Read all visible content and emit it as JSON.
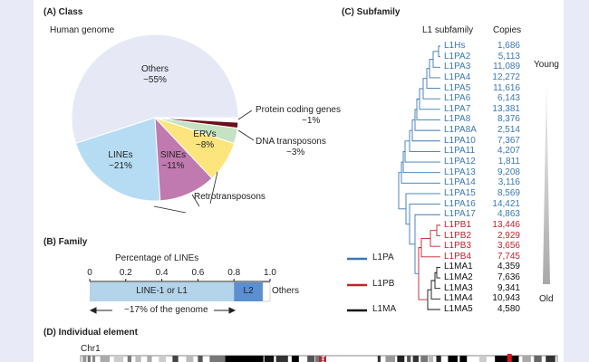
{
  "panel_a": {
    "title": "(A)  Class",
    "subtitle": "Human genome",
    "slices": [
      {
        "name": "Others",
        "label": "~55%",
        "value": 55,
        "color": "#e6e9f5"
      },
      {
        "name": "LINEs",
        "label": "~21%",
        "value": 21,
        "color": "#b6dcf4"
      },
      {
        "name": "SINEs",
        "label": "~11%",
        "value": 11,
        "color": "#c07ab0"
      },
      {
        "name": "ERVs",
        "label": "~8%",
        "value": 8,
        "color": "#fbe57c"
      },
      {
        "name": "DNA transposons",
        "label": "~3%",
        "value": 3,
        "color": "#c5e3c3"
      },
      {
        "name": "Protein coding genes",
        "label": "~1%",
        "value": 1,
        "color": "#6b0f1a"
      }
    ],
    "group_label": "Retrotransposons"
  },
  "panel_b": {
    "title": "(B)  Family",
    "axis_title": "Percentage of LINEs",
    "ticks": [
      "0",
      "0.2",
      "0.4",
      "0.6",
      "0.8",
      "1.0"
    ],
    "segments": [
      {
        "label": "LINE-1 or L1",
        "fraction": 0.8,
        "color": "#b3d4ea"
      },
      {
        "label": "L2",
        "fraction": 0.16,
        "color": "#5b8fd0"
      },
      {
        "label": "Others",
        "fraction": 0.04,
        "color": "#ffffff"
      }
    ],
    "note": "~17% of the genome"
  },
  "panel_c": {
    "title": "(C)  Subfamily",
    "col_subfamily": "L1 subfamily",
    "col_copies": "Copies",
    "young": "Young",
    "old": "Old",
    "legend": [
      {
        "label": "L1PA",
        "color": "#3a78b5"
      },
      {
        "label": "L1PB",
        "color": "#c0222c"
      },
      {
        "label": "L1MA",
        "color": "#111111"
      }
    ],
    "rows": [
      {
        "name": "L1Hs",
        "copies": "1,686",
        "group": 0
      },
      {
        "name": "L1PA2",
        "copies": "5,113",
        "group": 0
      },
      {
        "name": "L1PA3",
        "copies": "11,089",
        "group": 0
      },
      {
        "name": "L1PA4",
        "copies": "12,272",
        "group": 0
      },
      {
        "name": "L1PA5",
        "copies": "11,616",
        "group": 0
      },
      {
        "name": "L1PA6",
        "copies": "6,143",
        "group": 0
      },
      {
        "name": "L1PA7",
        "copies": "13,381",
        "group": 0
      },
      {
        "name": "L1PA8",
        "copies": "8,376",
        "group": 0
      },
      {
        "name": "L1PA8A",
        "copies": "2,514",
        "group": 0
      },
      {
        "name": "L1PA10",
        "copies": "7,367",
        "group": 0
      },
      {
        "name": "L1PA11",
        "copies": "4,207",
        "group": 0
      },
      {
        "name": "L1PA12",
        "copies": "1,811",
        "group": 0
      },
      {
        "name": "L1PA13",
        "copies": "9,208",
        "group": 0
      },
      {
        "name": "L1PA14",
        "copies": "3,116",
        "group": 0
      },
      {
        "name": "L1PA15",
        "copies": "8,569",
        "group": 0
      },
      {
        "name": "L1PA16",
        "copies": "14,421",
        "group": 0
      },
      {
        "name": "L1PA17",
        "copies": "4,863",
        "group": 0
      },
      {
        "name": "L1PB1",
        "copies": "13,446",
        "group": 1
      },
      {
        "name": "L1PB2",
        "copies": "2,929",
        "group": 1
      },
      {
        "name": "L1PB3",
        "copies": "3,656",
        "group": 1
      },
      {
        "name": "L1PB4",
        "copies": "7,745",
        "group": 1
      },
      {
        "name": "L1MA1",
        "copies": "4,359",
        "group": 2
      },
      {
        "name": "L1MA2",
        "copies": "7,636",
        "group": 2
      },
      {
        "name": "L1MA3",
        "copies": "9,341",
        "group": 2
      },
      {
        "name": "L1MA4",
        "copies": "10,943",
        "group": 2
      },
      {
        "name": "L1MA5",
        "copies": "4,580",
        "group": 2
      }
    ]
  },
  "panel_d": {
    "title": "(D)  Individual element",
    "chromosome": "Chr1"
  }
}
